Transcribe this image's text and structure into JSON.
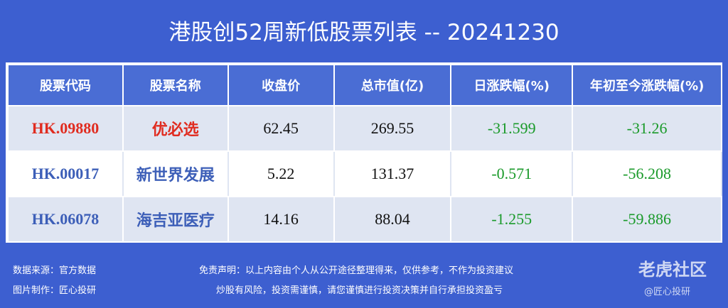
{
  "title": "港股创52周新低股票列表 -- 20241230",
  "table": {
    "columns": [
      "股票代码",
      "股票名称",
      "收盘价",
      "总市值(亿)",
      "日涨跌幅(%)",
      "年初至今涨跌幅(%)"
    ],
    "rows": [
      [
        "HK.09880",
        "优必选",
        "62.45",
        "269.55",
        "-31.599",
        "-31.26"
      ],
      [
        "HK.00017",
        "新世界发展",
        "5.22",
        "131.37",
        "-0.571",
        "-56.208"
      ],
      [
        "HK.06078",
        "海吉亚医疗",
        "14.16",
        "88.04",
        "-1.255",
        "-59.886"
      ]
    ]
  },
  "footer": {
    "source": "数据来源：官方数据",
    "maker": "图片制作：匠心投研",
    "disclaimer": [
      "免责声明：以上内容由个人从公开途径整理得来，仅供参考，不作为投资建议",
      "炒股有风险，投资需谨慎，请您谨慎进行投资决策并自行承担投资盈亏"
    ]
  },
  "watermark": {
    "brand": "老虎社区",
    "author": "@匠心投研"
  }
}
